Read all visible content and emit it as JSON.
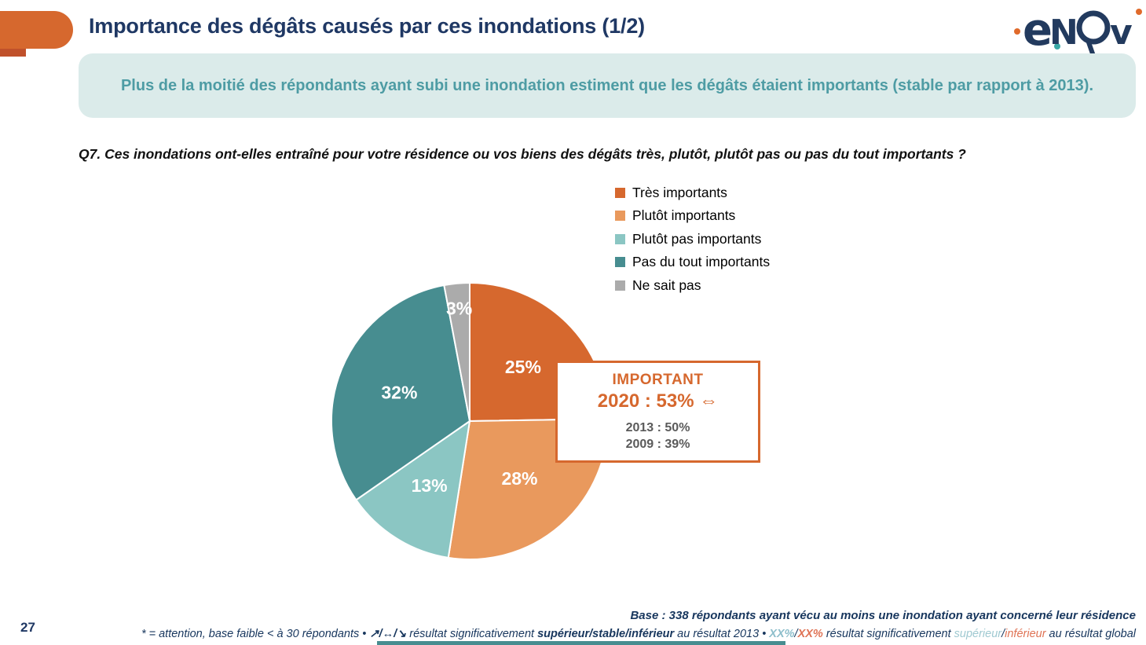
{
  "header": {
    "title": "Importance des dégâts causés par ces inondations (1/2)",
    "logo_text": "enov",
    "accent_color": "#D6682E"
  },
  "banner": {
    "text": "Plus de la moitié des répondants ayant subi une inondation estiment que les dégâts étaient importants (stable par rapport à 2013)."
  },
  "question": "Q7. Ces inondations ont-elles entraîné pour votre résidence ou vos biens des dégâts très, plutôt, plutôt pas ou pas du tout importants ?",
  "chart_data": {
    "type": "pie",
    "labels": [
      "Très importants",
      "Plutôt importants",
      "Plutôt pas importants",
      "Pas du tout importants",
      "Ne sait pas"
    ],
    "values": [
      25,
      28,
      13,
      32,
      3
    ],
    "colors": [
      "#D6682E",
      "#E9995D",
      "#8BC6C3",
      "#478D90",
      "#ABABAB"
    ],
    "value_format": "percent",
    "legend_position": "right",
    "start_angle_deg": -90,
    "direction": "clockwise"
  },
  "callout": {
    "title": "IMPORTANT",
    "current": "2020 : 53%",
    "trend_arrow": "⇔",
    "history": [
      "2013 : 50%",
      "2009 : 39%"
    ]
  },
  "footer": {
    "base_note": "Base : 338 répondants ayant vécu au moins une inondation ayant concerné leur résidence",
    "page_number": "27",
    "note": {
      "part1": "* = attention, base faible < à 30 répondants • ",
      "arrows": "↗/↔/↘",
      "part2": " résultat significativement ",
      "emph": "supérieur/stable/inférieur",
      "part3": " au résultat 2013 • ",
      "xx_sup": "XX%",
      "slash1": "/",
      "xx_inf": "XX%",
      "part4": " résultat significativement ",
      "sup_word": "supérieur",
      "slash2": "/",
      "inf_word": "inférieur",
      "part5": " au résultat global"
    }
  },
  "colors": {
    "accent_orange": "#D6682E",
    "title_navy": "#1F3864",
    "banner_bg": "#DBEBEA",
    "banner_text": "#4E9CA4",
    "callout_gray": "#5A5A5A",
    "footer_navy": "#17365D",
    "significant_higher": "#8DBECB",
    "significant_lower": "#DF7355",
    "bottom_bar_teal": "#478D90"
  }
}
